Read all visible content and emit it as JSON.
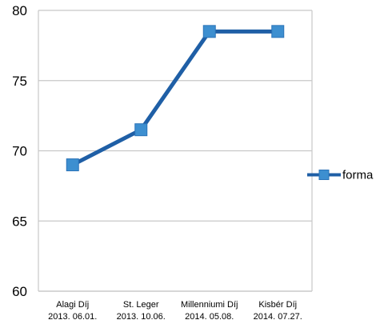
{
  "chart_data": {
    "type": "line",
    "title": "",
    "xlabel": "",
    "ylabel": "",
    "categories": [
      [
        "Alagi Díj",
        "2013. 06.01."
      ],
      [
        "St. Leger",
        "2013. 10.06."
      ],
      [
        "Millenniumi Díj",
        "2014. 05.08."
      ],
      [
        "Kisbér Díj",
        "2014. 07.27."
      ]
    ],
    "series": [
      {
        "name": "forma",
        "values": [
          69,
          71.5,
          78.5,
          78.5
        ],
        "color": "#1f5fa6",
        "marker_color": "#3d8fd0",
        "marker": "square"
      }
    ],
    "ylim": [
      60,
      80
    ],
    "yticks": [
      60,
      65,
      70,
      75,
      80
    ],
    "grid": true,
    "legend_position": "right"
  }
}
